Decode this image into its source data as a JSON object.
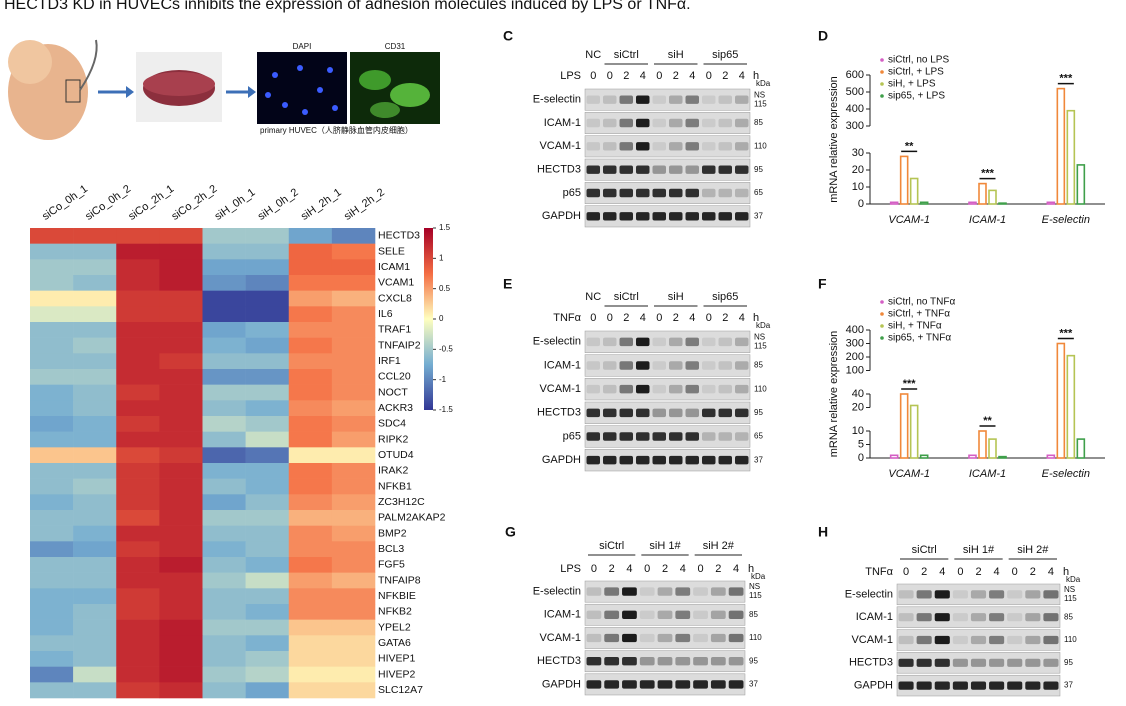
{
  "title": "HECTD3 KD in HUVECs inhibits the expression of adhesion molecules induced by LPS or TNFα.",
  "panel_a": {
    "labels": [
      "DAPI",
      "CD31"
    ],
    "caption": "primary HUVEC（人脐静脉血管内皮细胞）"
  },
  "blots": [
    {
      "panel": "C",
      "treatment": "LPS",
      "unit": "h",
      "kda": "kDa",
      "groups": [
        {
          "label": "NC",
          "timepoints": [
            0
          ]
        },
        {
          "label": "siCtrl",
          "timepoints": [
            0,
            2,
            4
          ]
        },
        {
          "label": "siH",
          "timepoints": [
            0,
            2,
            4
          ]
        },
        {
          "label": "sip65",
          "timepoints": [
            0,
            2,
            4
          ]
        }
      ],
      "rows": [
        {
          "name": "E-selectin",
          "markers": [
            "NS",
            "115"
          ]
        },
        {
          "name": "ICAM-1",
          "markers": [
            "85"
          ]
        },
        {
          "name": "VCAM-1",
          "markers": [
            "110"
          ]
        },
        {
          "name": "HECTD3",
          "markers": [
            "95"
          ]
        },
        {
          "name": "p65",
          "markers": [
            "65"
          ]
        },
        {
          "name": "GAPDH",
          "markers": [
            "37"
          ]
        }
      ]
    },
    {
      "panel": "E",
      "treatment": "TNFα",
      "unit": "h",
      "kda": "kDa",
      "groups": [
        {
          "label": "NC",
          "timepoints": [
            0
          ]
        },
        {
          "label": "siCtrl",
          "timepoints": [
            0,
            2,
            4
          ]
        },
        {
          "label": "siH",
          "timepoints": [
            0,
            2,
            4
          ]
        },
        {
          "label": "sip65",
          "timepoints": [
            0,
            2,
            4
          ]
        }
      ],
      "rows": [
        {
          "name": "E-selectin",
          "markers": [
            "NS",
            "115"
          ]
        },
        {
          "name": "ICAM-1",
          "markers": [
            "85"
          ]
        },
        {
          "name": "VCAM-1",
          "markers": [
            "110"
          ]
        },
        {
          "name": "HECTD3",
          "markers": [
            "95"
          ]
        },
        {
          "name": "p65",
          "markers": [
            "65"
          ]
        },
        {
          "name": "GAPDH",
          "markers": [
            "37"
          ]
        }
      ]
    },
    {
      "panel": "G",
      "treatment": "LPS",
      "unit": "h",
      "kda": "kDa",
      "groups": [
        {
          "label": "siCtrl",
          "timepoints": [
            0,
            2,
            4
          ]
        },
        {
          "label": "siH 1#",
          "timepoints": [
            0,
            2,
            4
          ]
        },
        {
          "label": "siH 2#",
          "timepoints": [
            0,
            2,
            4
          ]
        }
      ],
      "rows": [
        {
          "name": "E-selectin",
          "markers": [
            "NS",
            "115"
          ]
        },
        {
          "name": "ICAM-1",
          "markers": [
            "85"
          ]
        },
        {
          "name": "VCAM-1",
          "markers": [
            "110"
          ]
        },
        {
          "name": "HECTD3",
          "markers": [
            "95"
          ]
        },
        {
          "name": "GAPDH",
          "markers": [
            "37"
          ]
        }
      ]
    },
    {
      "panel": "H",
      "treatment": "TNFα",
      "unit": "h",
      "kda": "kDa",
      "groups": [
        {
          "label": "siCtrl",
          "timepoints": [
            0,
            2,
            4
          ]
        },
        {
          "label": "siH 1#",
          "timepoints": [
            0,
            2,
            4
          ]
        },
        {
          "label": "siH 2#",
          "timepoints": [
            0,
            2,
            4
          ]
        }
      ],
      "rows": [
        {
          "name": "E-selectin",
          "markers": [
            "NS",
            "115"
          ]
        },
        {
          "name": "ICAM-1",
          "markers": [
            "85"
          ]
        },
        {
          "name": "VCAM-1",
          "markers": [
            "110"
          ]
        },
        {
          "name": "HECTD3",
          "markers": [
            "95"
          ]
        },
        {
          "name": "GAPDH",
          "markers": [
            "37"
          ]
        }
      ]
    }
  ],
  "chart_data": [
    {
      "type": "heatmap",
      "columns": [
        "siCo_0h_1",
        "siCo_0h_2",
        "siCo_2h_1",
        "siCo_2h_2",
        "siH_0h_1",
        "siH_0h_2",
        "siH_2h_1",
        "siH_2h_2"
      ],
      "rows": [
        "HECTD3",
        "SELE",
        "ICAM1",
        "VCAM1",
        "CXCL8",
        "IL6",
        "TRAF1",
        "TNFAIP2",
        "IRF1",
        "CCL20",
        "NOCT",
        "ACKR3",
        "SDC4",
        "RIPK2",
        "OTUD4",
        "IRAK2",
        "NFKB1",
        "ZC3H12C",
        "PALM2AKAP2",
        "BMP2",
        "BCL3",
        "FGF5",
        "TNFAIP8",
        "NFKBIE",
        "NFKB2",
        "YPEL2",
        "GATA6",
        "HIVEP1",
        "HIVEP2",
        "SLC12A7"
      ],
      "values": [
        [
          1.0,
          1.0,
          1.0,
          1.0,
          -0.5,
          -0.5,
          -0.8,
          -1.0
        ],
        [
          -0.6,
          -0.6,
          1.3,
          1.3,
          -0.6,
          -0.6,
          0.8,
          0.7
        ],
        [
          -0.5,
          -0.5,
          1.2,
          1.3,
          -0.8,
          -0.8,
          0.8,
          0.8
        ],
        [
          -0.5,
          -0.6,
          1.2,
          1.3,
          -0.9,
          -1.0,
          0.7,
          0.7
        ],
        [
          0.1,
          0.1,
          1.1,
          1.1,
          -1.4,
          -1.4,
          0.5,
          0.4
        ],
        [
          -0.2,
          -0.2,
          1.1,
          1.1,
          -1.4,
          -1.4,
          0.7,
          0.6
        ],
        [
          -0.6,
          -0.6,
          1.2,
          1.2,
          -0.8,
          -0.7,
          0.6,
          0.6
        ],
        [
          -0.6,
          -0.5,
          1.2,
          1.2,
          -0.7,
          -0.8,
          0.7,
          0.6
        ],
        [
          -0.6,
          -0.6,
          1.2,
          1.1,
          -0.6,
          -0.6,
          0.6,
          0.6
        ],
        [
          -0.5,
          -0.5,
          1.2,
          1.2,
          -0.9,
          -0.9,
          0.7,
          0.6
        ],
        [
          -0.7,
          -0.6,
          1.1,
          1.2,
          -0.5,
          -0.5,
          0.7,
          0.6
        ],
        [
          -0.7,
          -0.6,
          1.2,
          1.2,
          -0.6,
          -0.7,
          0.6,
          0.5
        ],
        [
          -0.8,
          -0.7,
          1.1,
          1.2,
          -0.4,
          -0.5,
          0.7,
          0.6
        ],
        [
          -0.7,
          -0.7,
          1.2,
          1.2,
          -0.6,
          -0.3,
          0.7,
          0.5
        ],
        [
          0.3,
          0.3,
          1.0,
          1.1,
          -1.2,
          -1.1,
          0.1,
          0.1
        ],
        [
          -0.6,
          -0.6,
          1.1,
          1.2,
          -0.7,
          -0.7,
          0.7,
          0.6
        ],
        [
          -0.6,
          -0.5,
          1.1,
          1.2,
          -0.6,
          -0.7,
          0.7,
          0.6
        ],
        [
          -0.7,
          -0.6,
          1.1,
          1.2,
          -0.8,
          -0.6,
          0.6,
          0.5
        ],
        [
          -0.6,
          -0.6,
          1.0,
          1.2,
          -0.5,
          -0.5,
          0.4,
          0.4
        ],
        [
          -0.6,
          -0.7,
          1.2,
          1.2,
          -0.6,
          -0.6,
          0.6,
          0.5
        ],
        [
          -0.9,
          -0.8,
          1.1,
          1.2,
          -0.7,
          -0.6,
          0.6,
          0.6
        ],
        [
          -0.6,
          -0.6,
          1.2,
          1.3,
          -0.6,
          -0.7,
          0.7,
          0.6
        ],
        [
          -0.6,
          -0.6,
          1.2,
          1.2,
          -0.5,
          -0.3,
          0.5,
          0.4
        ],
        [
          -0.7,
          -0.7,
          1.1,
          1.2,
          -0.6,
          -0.6,
          0.6,
          0.6
        ],
        [
          -0.7,
          -0.6,
          1.1,
          1.2,
          -0.6,
          -0.7,
          0.6,
          0.6
        ],
        [
          -0.7,
          -0.6,
          1.2,
          1.3,
          -0.5,
          -0.5,
          0.3,
          0.3
        ],
        [
          -0.6,
          -0.6,
          1.2,
          1.3,
          -0.6,
          -0.7,
          0.2,
          0.2
        ],
        [
          -0.7,
          -0.6,
          1.2,
          1.3,
          -0.6,
          -0.5,
          0.2,
          0.2
        ],
        [
          -1.0,
          -0.3,
          1.2,
          1.3,
          -0.5,
          -0.4,
          0.1,
          0.1
        ],
        [
          -0.6,
          -0.6,
          1.1,
          1.2,
          -0.6,
          -0.8,
          0.2,
          0.2
        ]
      ],
      "vlim": [
        -1.5,
        1.5
      ],
      "colorbar_ticks": [
        1.5,
        1,
        0.5,
        0,
        -0.5,
        -1,
        -1.5
      ],
      "colormap": [
        "#313695",
        "#74add1",
        "#ffffbf",
        "#f46d43",
        "#a50026"
      ],
      "highlight_rows": [
        1,
        2,
        3
      ],
      "highlight_color": "#e8322b"
    },
    {
      "type": "bar",
      "panel": "D",
      "ylabel": "mRNA relative expression",
      "categories": [
        "VCAM-1",
        "ICAM-1",
        "E-selectin"
      ],
      "series": [
        {
          "name": "siCtrl, no LPS",
          "color": "#d45fc4",
          "values": [
            1,
            1,
            1
          ]
        },
        {
          "name": "siCtrl, + LPS",
          "color": "#f0883a",
          "values": [
            28,
            12,
            520
          ]
        },
        {
          "name": "siH, + LPS",
          "color": "#b5c454",
          "values": [
            15,
            8,
            390
          ]
        },
        {
          "name": "sip65, + LPS",
          "color": "#3f9f4a",
          "values": [
            1,
            0.5,
            23
          ]
        }
      ],
      "annotations": [
        "**",
        "***",
        "***"
      ],
      "ylim": [
        0,
        600
      ],
      "yticks": [
        0,
        10,
        20,
        30,
        300,
        400,
        500,
        600
      ],
      "axis_breaks": [
        [
          30,
          300
        ]
      ]
    },
    {
      "type": "bar",
      "panel": "F",
      "ylabel": "mRNA relative expression",
      "categories": [
        "VCAM-1",
        "ICAM-1",
        "E-selectin"
      ],
      "series": [
        {
          "name": "siCtrl, no TNFα",
          "color": "#d45fc4",
          "values": [
            1,
            1,
            1
          ]
        },
        {
          "name": "siCtrl, + TNFα",
          "color": "#f0883a",
          "values": [
            40,
            10,
            300
          ]
        },
        {
          "name": "siH, + TNFα",
          "color": "#b5c454",
          "values": [
            23,
            7,
            210
          ]
        },
        {
          "name": "sip65, + TNFα",
          "color": "#3f9f4a",
          "values": [
            1,
            0.5,
            7
          ]
        }
      ],
      "annotations": [
        "***",
        "**",
        "***"
      ],
      "ylim": [
        0,
        400
      ],
      "yticks": [
        0,
        5,
        10,
        20,
        40,
        100,
        200,
        300,
        400
      ],
      "axis_breaks": [
        [
          10,
          20
        ],
        [
          40,
          100
        ]
      ]
    }
  ]
}
